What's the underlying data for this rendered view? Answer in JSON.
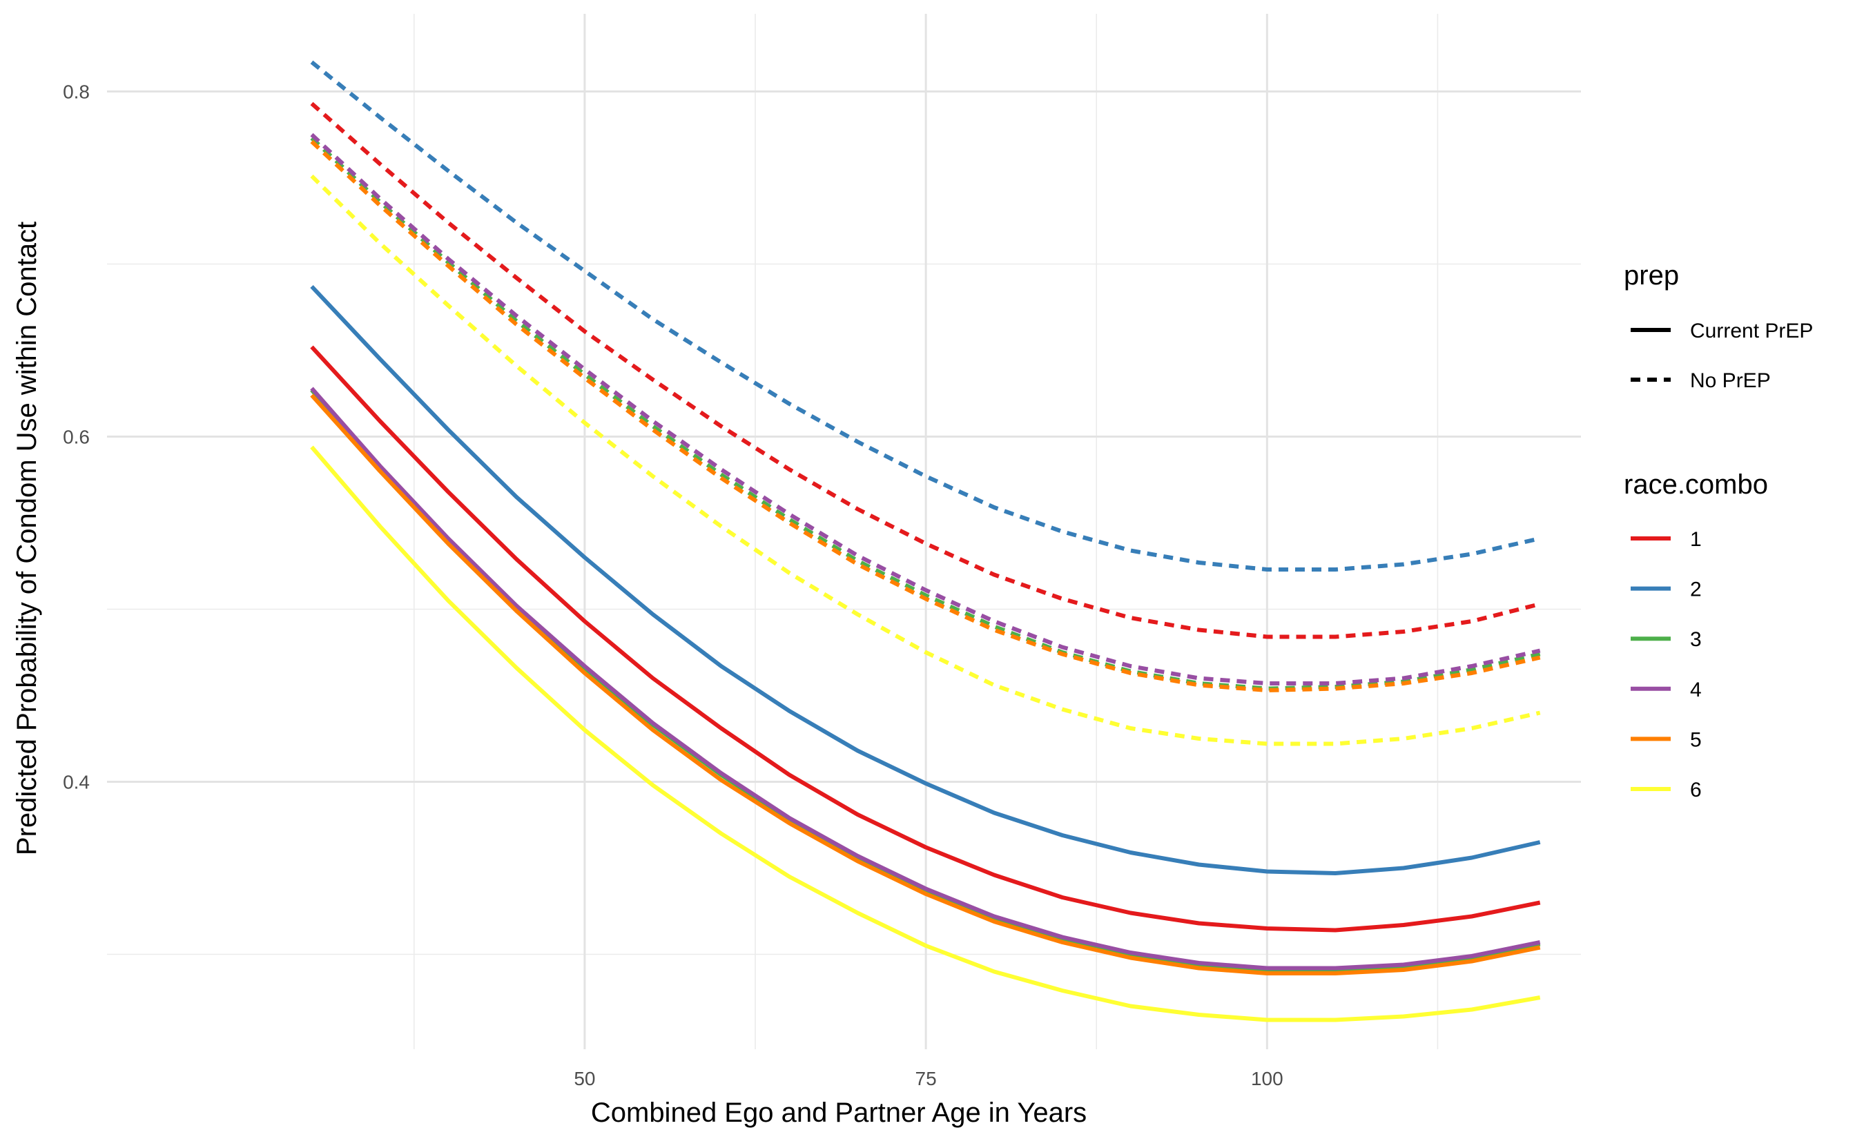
{
  "chart_data": {
    "type": "line",
    "xlabel": "Combined Ego and Partner Age in Years",
    "ylabel": "Predicted Probability of Condom Use within Contact",
    "xlim": [
      15,
      123
    ],
    "ylim": [
      0.245,
      0.845
    ],
    "x_ticks": [
      50,
      75,
      100
    ],
    "x_tick_labels": [
      "50",
      "75",
      "100"
    ],
    "x_minor_ticks": [
      37.5,
      62.5,
      87.5,
      112.5
    ],
    "y_ticks": [
      0.4,
      0.6,
      0.8
    ],
    "y_tick_labels": [
      "0.4",
      "0.6",
      "0.8"
    ],
    "y_minor_ticks": [
      0.3,
      0.5,
      0.7
    ],
    "grid": true,
    "legend_placement": "right",
    "x": [
      30,
      35,
      40,
      45,
      50,
      55,
      60,
      65,
      70,
      75,
      80,
      85,
      90,
      95,
      100,
      105,
      110,
      115,
      120
    ],
    "legends": {
      "prep": {
        "title": "prep",
        "entries": [
          {
            "label": "Current PrEP",
            "dash": "solid"
          },
          {
            "label": "No PrEP",
            "dash": "dashed"
          }
        ]
      },
      "race_combo": {
        "title": "race.combo",
        "entries": [
          {
            "label": "1",
            "color": "#e41a1c"
          },
          {
            "label": "2",
            "color": "#377eb8"
          },
          {
            "label": "3",
            "color": "#4daf4a"
          },
          {
            "label": "4",
            "color": "#984ea3"
          },
          {
            "label": "5",
            "color": "#ff7f00"
          },
          {
            "label": "6",
            "color": "#ffff33"
          }
        ]
      }
    },
    "series": [
      {
        "race": "1",
        "prep": "Current PrEP",
        "color": "#e41a1c",
        "dash": "solid",
        "values": [
          0.652,
          0.609,
          0.568,
          0.529,
          0.493,
          0.46,
          0.431,
          0.404,
          0.381,
          0.362,
          0.346,
          0.333,
          0.324,
          0.318,
          0.315,
          0.314,
          0.317,
          0.322,
          0.33
        ]
      },
      {
        "race": "2",
        "prep": "Current PrEP",
        "color": "#377eb8",
        "dash": "solid",
        "values": [
          0.687,
          0.645,
          0.604,
          0.565,
          0.53,
          0.497,
          0.467,
          0.441,
          0.418,
          0.399,
          0.382,
          0.369,
          0.359,
          0.352,
          0.348,
          0.347,
          0.35,
          0.356,
          0.365
        ]
      },
      {
        "race": "3",
        "prep": "Current PrEP",
        "color": "#4daf4a",
        "dash": "solid",
        "values": [
          0.627,
          0.582,
          0.54,
          0.501,
          0.466,
          0.433,
          0.404,
          0.378,
          0.356,
          0.337,
          0.321,
          0.309,
          0.3,
          0.294,
          0.291,
          0.291,
          0.293,
          0.298,
          0.306
        ]
      },
      {
        "race": "4",
        "prep": "Current PrEP",
        "color": "#984ea3",
        "dash": "solid",
        "values": [
          0.628,
          0.583,
          0.541,
          0.502,
          0.467,
          0.434,
          0.405,
          0.379,
          0.357,
          0.338,
          0.322,
          0.31,
          0.301,
          0.295,
          0.292,
          0.292,
          0.294,
          0.299,
          0.307
        ]
      },
      {
        "race": "5",
        "prep": "Current PrEP",
        "color": "#ff7f00",
        "dash": "solid",
        "values": [
          0.624,
          0.58,
          0.538,
          0.499,
          0.463,
          0.43,
          0.401,
          0.376,
          0.354,
          0.335,
          0.319,
          0.307,
          0.298,
          0.292,
          0.289,
          0.289,
          0.291,
          0.296,
          0.304
        ]
      },
      {
        "race": "6",
        "prep": "Current PrEP",
        "color": "#ffff33",
        "dash": "solid",
        "values": [
          0.594,
          0.548,
          0.505,
          0.466,
          0.43,
          0.398,
          0.37,
          0.345,
          0.324,
          0.305,
          0.29,
          0.279,
          0.27,
          0.265,
          0.262,
          0.262,
          0.264,
          0.268,
          0.275
        ]
      },
      {
        "race": "1",
        "prep": "No PrEP",
        "color": "#e41a1c",
        "dash": "dashed",
        "values": [
          0.793,
          0.758,
          0.724,
          0.692,
          0.661,
          0.633,
          0.606,
          0.581,
          0.558,
          0.538,
          0.52,
          0.506,
          0.495,
          0.488,
          0.484,
          0.484,
          0.487,
          0.493,
          0.503
        ]
      },
      {
        "race": "2",
        "prep": "No PrEP",
        "color": "#377eb8",
        "dash": "dashed",
        "values": [
          0.817,
          0.785,
          0.754,
          0.724,
          0.696,
          0.668,
          0.643,
          0.619,
          0.597,
          0.577,
          0.559,
          0.545,
          0.534,
          0.527,
          0.523,
          0.523,
          0.526,
          0.532,
          0.541
        ]
      },
      {
        "race": "3",
        "prep": "No PrEP",
        "color": "#4daf4a",
        "dash": "dashed",
        "values": [
          0.773,
          0.736,
          0.701,
          0.667,
          0.636,
          0.606,
          0.578,
          0.552,
          0.528,
          0.508,
          0.49,
          0.475,
          0.464,
          0.457,
          0.454,
          0.455,
          0.458,
          0.465,
          0.474
        ]
      },
      {
        "race": "4",
        "prep": "No PrEP",
        "color": "#984ea3",
        "dash": "dashed",
        "values": [
          0.775,
          0.738,
          0.703,
          0.67,
          0.639,
          0.609,
          0.581,
          0.555,
          0.531,
          0.511,
          0.493,
          0.478,
          0.467,
          0.46,
          0.457,
          0.457,
          0.46,
          0.467,
          0.476
        ]
      },
      {
        "race": "5",
        "prep": "No PrEP",
        "color": "#ff7f00",
        "dash": "dashed",
        "values": [
          0.771,
          0.734,
          0.699,
          0.665,
          0.634,
          0.604,
          0.576,
          0.55,
          0.526,
          0.506,
          0.488,
          0.474,
          0.463,
          0.456,
          0.453,
          0.454,
          0.457,
          0.463,
          0.472
        ]
      },
      {
        "race": "6",
        "prep": "No PrEP",
        "color": "#ffff33",
        "dash": "dashed",
        "values": [
          0.751,
          0.712,
          0.676,
          0.641,
          0.608,
          0.577,
          0.548,
          0.521,
          0.497,
          0.475,
          0.456,
          0.442,
          0.431,
          0.425,
          0.422,
          0.422,
          0.425,
          0.431,
          0.44
        ]
      }
    ]
  }
}
